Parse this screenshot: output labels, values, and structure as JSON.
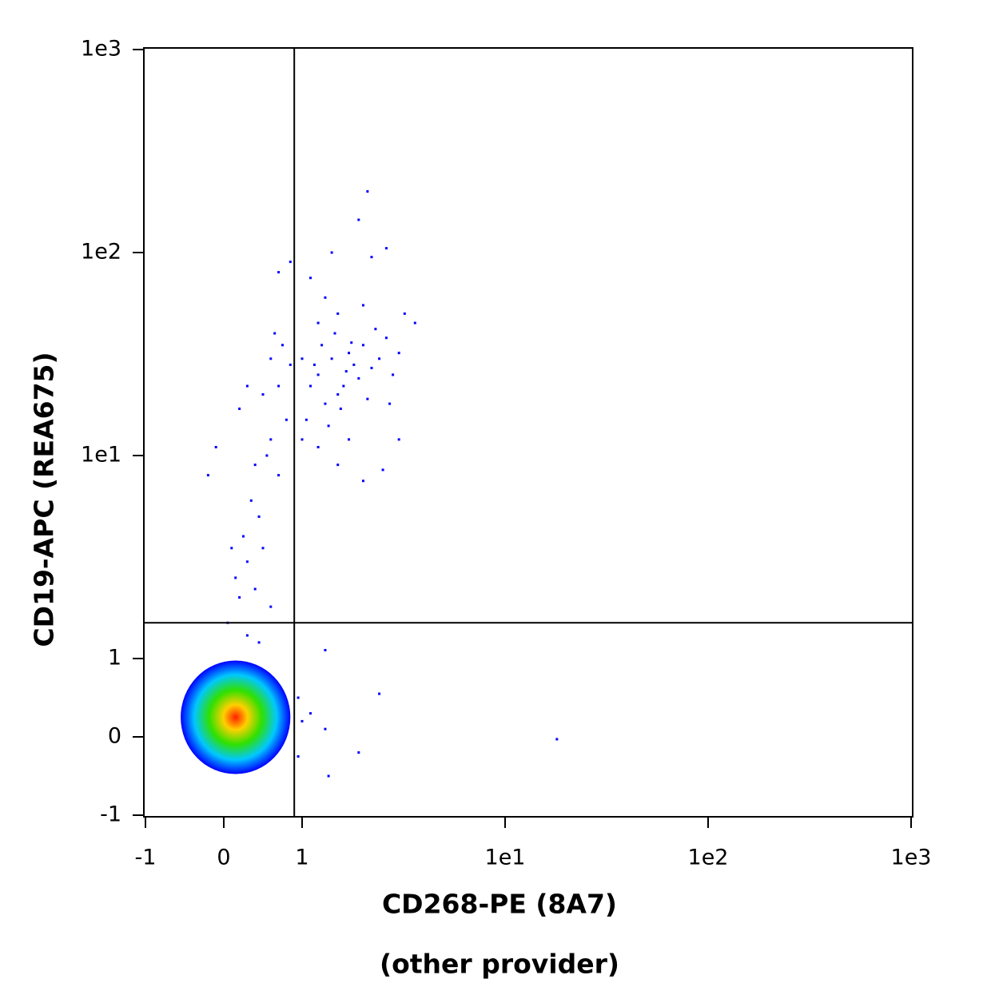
{
  "chart_data": {
    "type": "scatter",
    "xlabel": [
      "CD268-PE (8A7)",
      "(other provider)"
    ],
    "ylabel": "CD19-APC (REA675)",
    "xscale": "biexponential",
    "yscale": "biexponential",
    "xlim": [
      -1,
      1000
    ],
    "ylim": [
      -1,
      1000
    ],
    "xticks": [
      -1,
      0,
      1,
      {
        "value": 10,
        "label": "1e1"
      },
      {
        "value": 100,
        "label": "1e2"
      },
      {
        "value": 1000,
        "label": "1e3"
      }
    ],
    "yticks": [
      -1,
      0,
      1,
      {
        "value": 10,
        "label": "1e1"
      },
      {
        "value": 100,
        "label": "1e2"
      },
      {
        "value": 1000,
        "label": "1e3"
      }
    ],
    "gates": {
      "x": 0.9,
      "y": 1.5
    },
    "cluster": {
      "x": 0.15,
      "y": 0.25,
      "x_range": [
        -0.5,
        0.9
      ],
      "y_range": [
        -0.6,
        0.85
      ],
      "colors": [
        "#ff2000",
        "#ffd000",
        "#30e000",
        "#00c8ff",
        "#0000ff"
      ]
    },
    "series": [
      {
        "color": "#0000ff",
        "x": [
          1.2,
          1.4,
          1.6,
          1.8,
          2.0,
          1.3,
          1.5,
          1.7,
          2.2,
          1.1,
          1.25,
          1.45,
          1.9,
          2.4,
          2.6,
          1.05,
          1.35,
          1.55,
          2.1,
          2.8,
          3.0,
          1.15,
          1.65,
          1.75,
          2.3,
          1.0,
          1.2,
          1.5,
          2.0,
          3.2,
          3.6,
          1.3,
          1.1,
          1.4,
          2.2,
          2.6,
          1.9,
          2.1,
          1.2,
          1.5,
          2.0,
          2.5,
          1.7,
          1.0,
          3.0,
          2.7,
          0.6,
          0.75,
          0.85,
          0.5,
          0.7,
          0.8,
          0.6,
          0.3,
          0.2,
          0.4,
          0.55,
          0.7,
          0.35,
          0.45,
          0.25,
          0.5,
          0.3,
          0.15,
          0.4,
          0.6,
          -0.2,
          -0.1,
          0.65,
          0.7,
          0.85,
          0.1,
          0.2,
          0.05,
          0.3,
          0.45,
          1.1,
          1.3,
          1.35,
          1.3,
          2.4,
          1.9,
          18,
          0.95,
          1.0,
          0.95
        ],
        "y": [
          25,
          30,
          22,
          28,
          35,
          18,
          20,
          32,
          27,
          22,
          35,
          40,
          24,
          30,
          38,
          15,
          14,
          17,
          19,
          25,
          32,
          28,
          26,
          36,
          42,
          30,
          45,
          50,
          55,
          50,
          45,
          60,
          75,
          100,
          95,
          105,
          145,
          200,
          11,
          9,
          7.5,
          8.5,
          12,
          12,
          12,
          18,
          30,
          35,
          28,
          20,
          22,
          15,
          12,
          22,
          17,
          9,
          10,
          8,
          6,
          5,
          4,
          3.5,
          3,
          2.5,
          2.2,
          1.8,
          8,
          11,
          40,
          80,
          90,
          3.5,
          2,
          1.5,
          1.3,
          1.2,
          0.3,
          0.1,
          -0.5,
          1.1,
          0.55,
          -0.2,
          -0.03,
          0.5,
          0.2,
          -0.25
        ]
      }
    ]
  }
}
